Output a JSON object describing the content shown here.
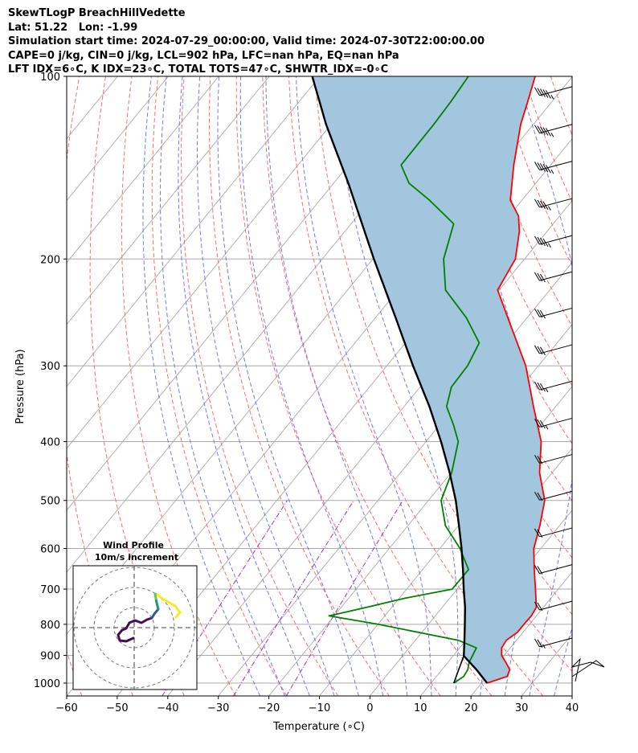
{
  "header": {
    "line1": "SkewTLogP BreachHillVedette",
    "line2": "Lat: 51.22   Lon: -1.99",
    "line3": "Simulation start time: 2024-07-29_00:00:00, Valid time: 2024-07-30T22:00:00.00",
    "line4": "CAPE=0 j/kg, CIN=0 j/kg, LCL=902 hPa, LFC=nan hPa, EQ=nan hPa",
    "line5": "LFT IDX=6∘C, K IDX=23∘C, TOTAL TOTS=47∘C, SHWTR_IDX=-0∘C"
  },
  "chart_data": {
    "type": "line",
    "xlabel": "Temperature (∘C)",
    "ylabel": "Pressure (hPa)",
    "xlim": [
      -60,
      40
    ],
    "ylim": [
      1050,
      100
    ],
    "y_scale": "log",
    "x_ticks": [
      "−60",
      "−50",
      "−40",
      "−30",
      "−20",
      "−10",
      "0",
      "10",
      "20",
      "30",
      "40"
    ],
    "y_ticks": [
      "100",
      "200",
      "300",
      "400",
      "500",
      "600",
      "700",
      "800",
      "900",
      "1000"
    ],
    "grid": true,
    "colors": {
      "temperature": "#ff0000",
      "dewpoint": "#008000",
      "parcel": "#000000",
      "shade": "#a3c6df",
      "dry_adiabat": "#ff6b6b",
      "moist_adiabat": "#5a63f0",
      "mixing_ratio": "#9d35c0",
      "isotherm": "#aaaaaa"
    },
    "series": [],
    "temperature": [
      {
        "p": 1000,
        "t": 21.1
      },
      {
        "p": 975,
        "t": 24.0
      },
      {
        "p": 950,
        "t": 23.4
      },
      {
        "p": 925,
        "t": 21.5
      },
      {
        "p": 900,
        "t": 19.5
      },
      {
        "p": 875,
        "t": 18.3
      },
      {
        "p": 850,
        "t": 18.0
      },
      {
        "p": 825,
        "t": 18.9
      },
      {
        "p": 800,
        "t": 18.9
      },
      {
        "p": 775,
        "t": 19.0
      },
      {
        "p": 750,
        "t": 18.6
      },
      {
        "p": 700,
        "t": 15.5
      },
      {
        "p": 650,
        "t": 12.1
      },
      {
        "p": 600,
        "t": 8.6
      },
      {
        "p": 550,
        "t": 6.1
      },
      {
        "p": 500,
        "t": 3.0
      },
      {
        "p": 450,
        "t": -2.5
      },
      {
        "p": 400,
        "t": -7.2
      },
      {
        "p": 350,
        "t": -14.4
      },
      {
        "p": 300,
        "t": -22.5
      },
      {
        "p": 250,
        "t": -33.8
      },
      {
        "p": 225,
        "t": -40.3
      },
      {
        "p": 200,
        "t": -41.8
      },
      {
        "p": 180,
        "t": -45.5
      },
      {
        "p": 170,
        "t": -48.1
      },
      {
        "p": 160,
        "t": -52.3
      },
      {
        "p": 140,
        "t": -57.3
      },
      {
        "p": 120,
        "t": -62.5
      },
      {
        "p": 110,
        "t": -64.8
      },
      {
        "p": 100,
        "t": -67.4
      }
    ],
    "dewpoint": [
      {
        "p": 1000,
        "t": 14.5
      },
      {
        "p": 975,
        "t": 15.4
      },
      {
        "p": 950,
        "t": 15.1
      },
      {
        "p": 925,
        "t": 14.2
      },
      {
        "p": 875,
        "t": 13.3
      },
      {
        "p": 850,
        "t": 8.5
      },
      {
        "p": 800,
        "t": -10.0
      },
      {
        "p": 775,
        "t": -21.0
      },
      {
        "p": 750,
        "t": -15.0
      },
      {
        "p": 725,
        "t": -9.0
      },
      {
        "p": 700,
        "t": -1.0
      },
      {
        "p": 650,
        "t": -0.9
      },
      {
        "p": 600,
        "t": -6.0
      },
      {
        "p": 550,
        "t": -12.6
      },
      {
        "p": 500,
        "t": -17.5
      },
      {
        "p": 450,
        "t": -19.9
      },
      {
        "p": 400,
        "t": -23.6
      },
      {
        "p": 375,
        "t": -27.3
      },
      {
        "p": 350,
        "t": -31.6
      },
      {
        "p": 325,
        "t": -33.8
      },
      {
        "p": 300,
        "t": -34.0
      },
      {
        "p": 275,
        "t": -35.4
      },
      {
        "p": 250,
        "t": -42.0
      },
      {
        "p": 225,
        "t": -50.6
      },
      {
        "p": 200,
        "t": -56.0
      },
      {
        "p": 175,
        "t": -59.7
      },
      {
        "p": 160,
        "t": -68.3
      },
      {
        "p": 150,
        "t": -75.1
      },
      {
        "p": 140,
        "t": -79.6
      },
      {
        "p": 120,
        "t": -79.7
      },
      {
        "p": 110,
        "t": -80.0
      },
      {
        "p": 100,
        "t": -80.6
      }
    ],
    "parcel": [
      {
        "p": 1000,
        "t": 21.1
      },
      {
        "p": 950,
        "t": 16.8
      },
      {
        "p": 902,
        "t": 12.1
      },
      {
        "p": 850,
        "t": 9.7
      },
      {
        "p": 800,
        "t": 7.2
      },
      {
        "p": 750,
        "t": 4.5
      },
      {
        "p": 700,
        "t": 1.3
      },
      {
        "p": 650,
        "t": -2.0
      },
      {
        "p": 600,
        "t": -5.7
      },
      {
        "p": 550,
        "t": -9.9
      },
      {
        "p": 500,
        "t": -14.6
      },
      {
        "p": 450,
        "t": -20.3
      },
      {
        "p": 400,
        "t": -27.0
      },
      {
        "p": 350,
        "t": -35.0
      },
      {
        "p": 300,
        "t": -44.8
      },
      {
        "p": 250,
        "t": -56.0
      },
      {
        "p": 200,
        "t": -69.8
      },
      {
        "p": 150,
        "t": -87.1
      },
      {
        "p": 120,
        "t": -101.0
      },
      {
        "p": 100,
        "t": -111.5
      }
    ],
    "parcel_start": {
      "p": 1000,
      "t": 14.5
    },
    "wind_barbs": [
      {
        "p": 104,
        "speed_kt": 45
      },
      {
        "p": 120,
        "speed_kt": 45
      },
      {
        "p": 138,
        "speed_kt": 45
      },
      {
        "p": 159,
        "speed_kt": 35
      },
      {
        "p": 183,
        "speed_kt": 35
      },
      {
        "p": 210,
        "speed_kt": 30
      },
      {
        "p": 241,
        "speed_kt": 30
      },
      {
        "p": 277,
        "speed_kt": 30
      },
      {
        "p": 318,
        "speed_kt": 25
      },
      {
        "p": 366,
        "speed_kt": 25
      },
      {
        "p": 420,
        "speed_kt": 20
      },
      {
        "p": 483,
        "speed_kt": 20
      },
      {
        "p": 555,
        "speed_kt": 20
      },
      {
        "p": 638,
        "speed_kt": 20
      },
      {
        "p": 733,
        "speed_kt": 20
      },
      {
        "p": 843,
        "speed_kt": 15
      }
    ],
    "hodograph": {
      "title": "Wind Profile",
      "subtitle": "10m/s increment",
      "trace_colors": [
        "#450b57",
        "#3b528b",
        "#21918c",
        "#5ec962",
        "#fde725"
      ]
    }
  }
}
